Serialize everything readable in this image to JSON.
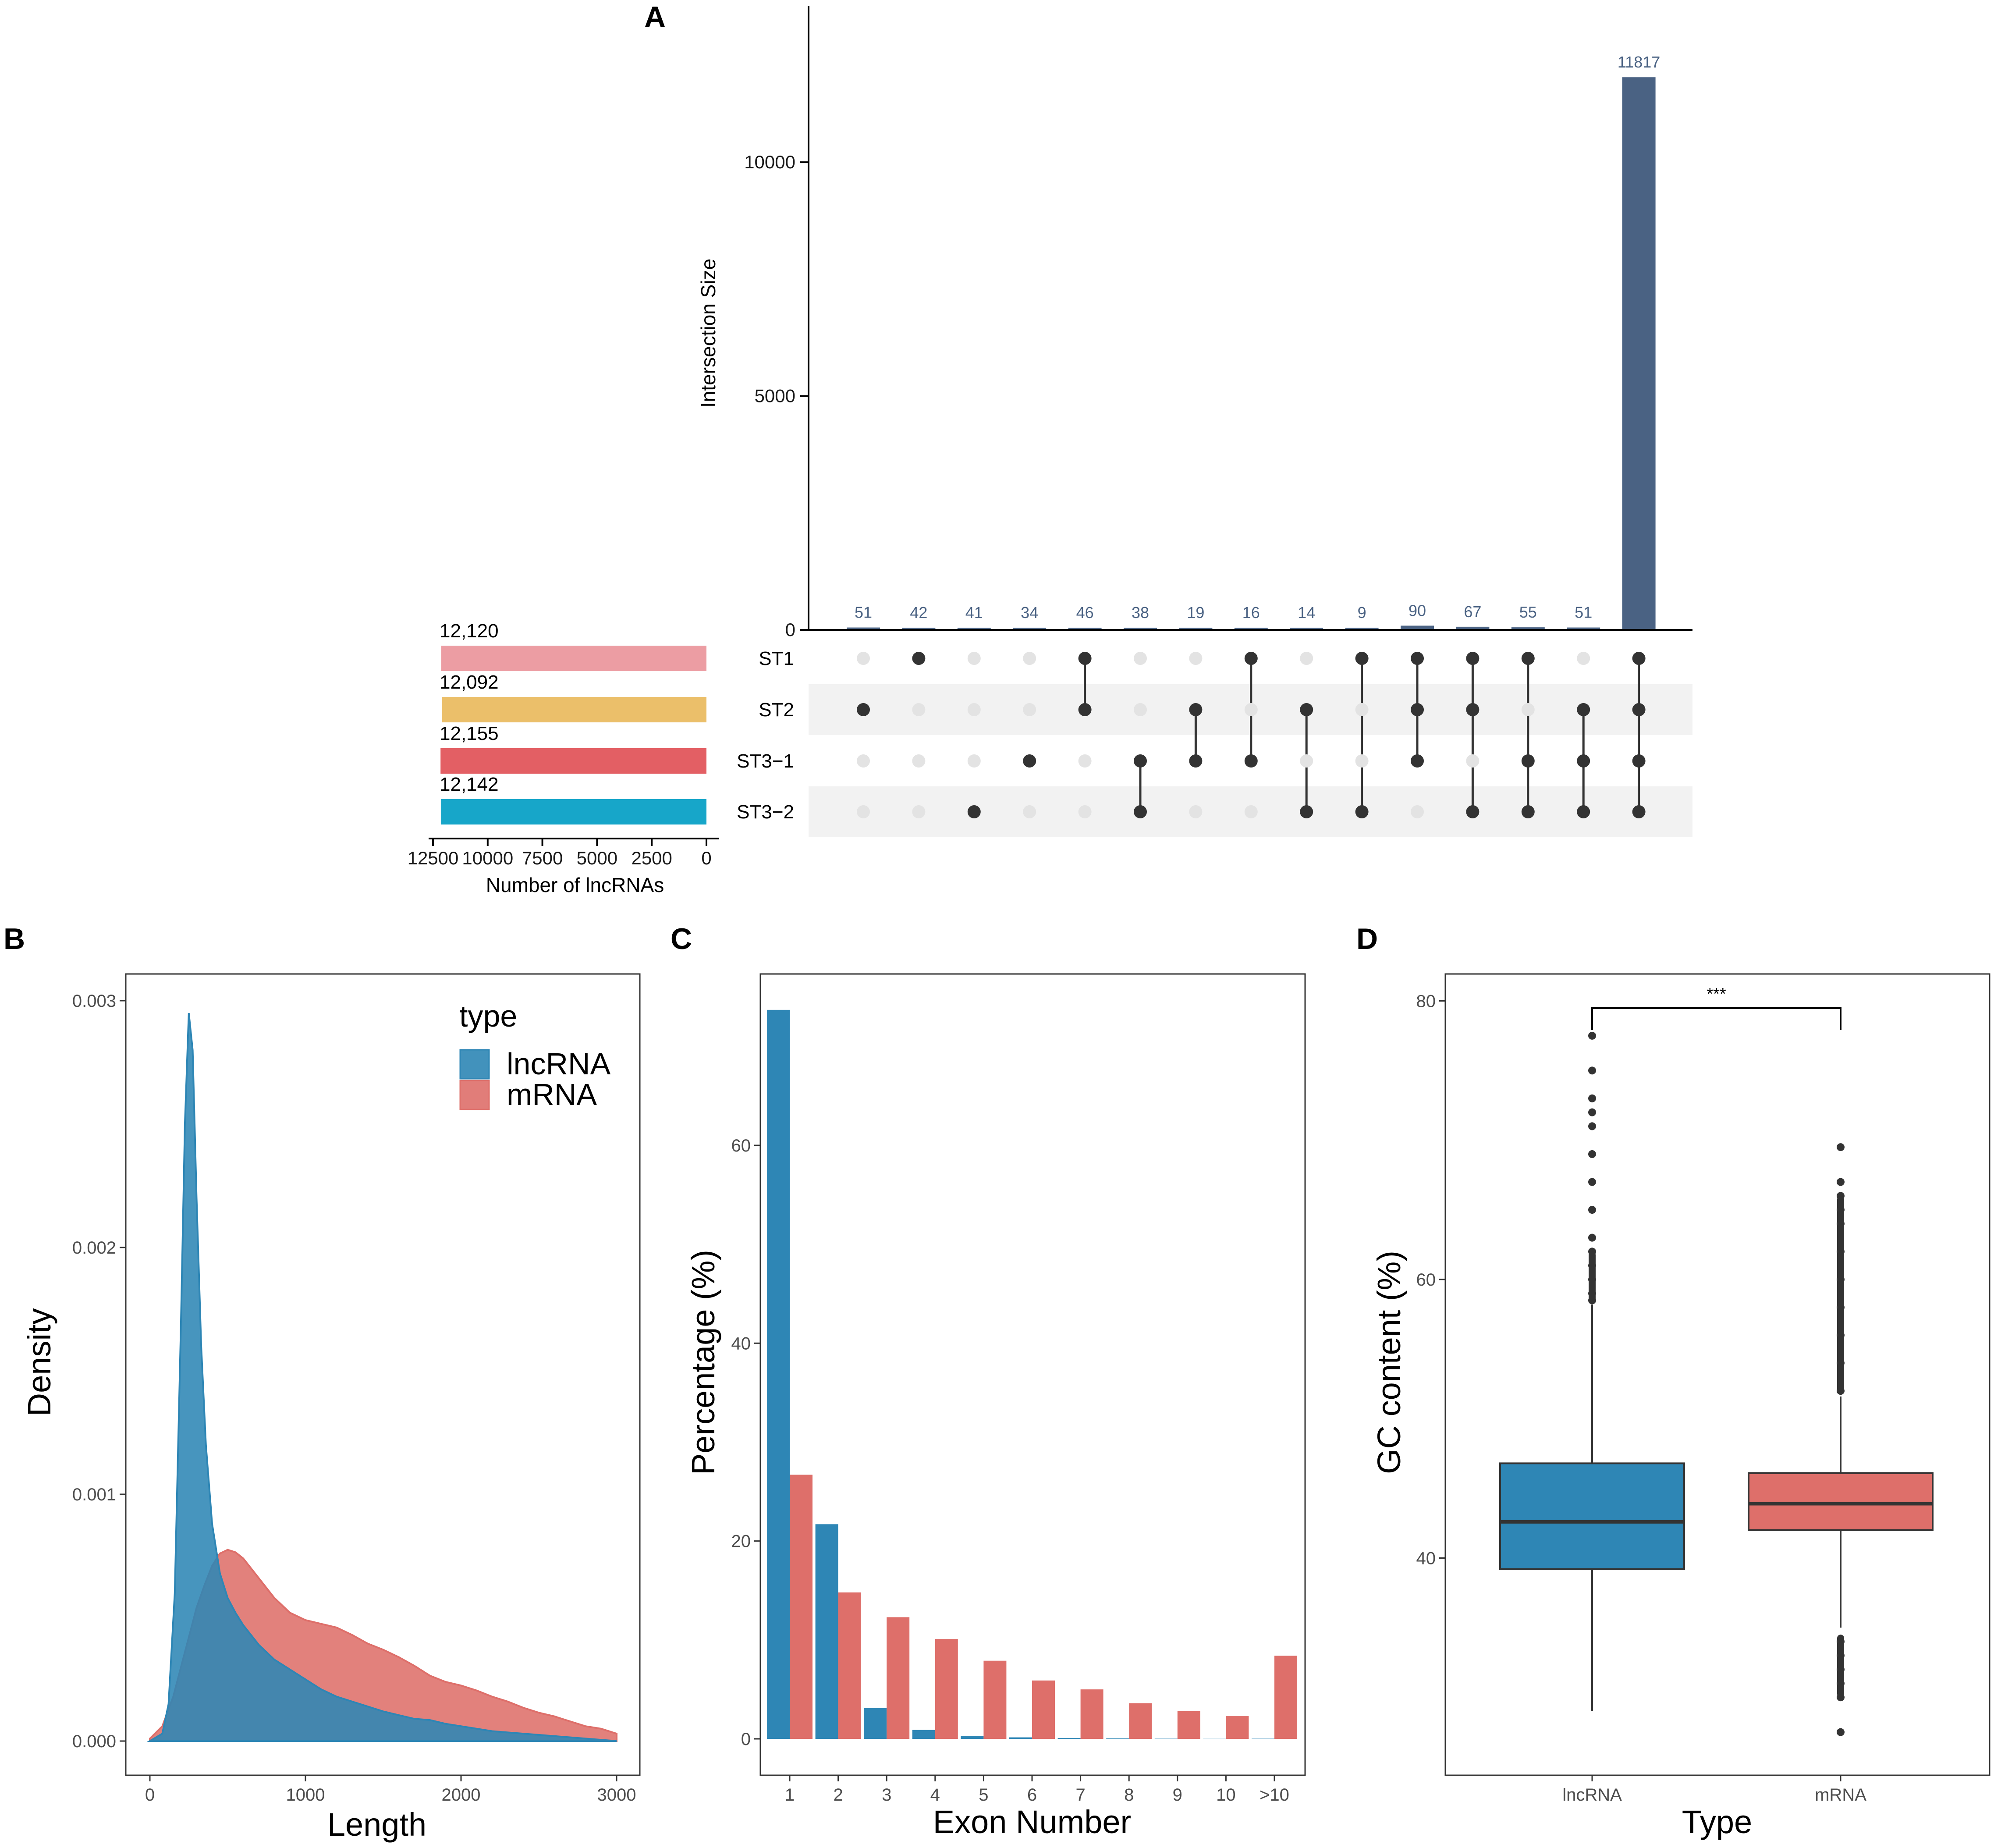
{
  "colors": {
    "upset_bar": "#4a6283",
    "dot_on": "#333333",
    "dot_off": "#e3e3e3",
    "stripe": "#f2f2f2",
    "lncRNA": "#2e86b5",
    "mRNA": "#de6f6a"
  },
  "chart_data": [
    {
      "panel": "A",
      "type": "bar",
      "subtype": "upset",
      "ylabel": "Intersection Size",
      "ylim": [
        0,
        13000
      ],
      "yticks": [
        "0",
        "5000",
        "10000"
      ],
      "yticks_values": [
        0,
        5000,
        10000
      ],
      "values": [
        51,
        42,
        41,
        34,
        46,
        38,
        19,
        16,
        14,
        9,
        90,
        67,
        55,
        51,
        11817
      ],
      "value_labels": [
        "51",
        "42",
        "41",
        "34",
        "46",
        "38",
        "19",
        "16",
        "14",
        "9",
        "90",
        "67",
        "55",
        "51",
        "11817"
      ],
      "sets": [
        "ST1",
        "ST2",
        "ST3−1",
        "ST3−2"
      ],
      "membership": [
        [
          1
        ],
        [
          0
        ],
        [
          3
        ],
        [
          2
        ],
        [
          0,
          1
        ],
        [
          2,
          3
        ],
        [
          1,
          2
        ],
        [
          0,
          2
        ],
        [
          1,
          3
        ],
        [
          0,
          3
        ],
        [
          0,
          1,
          2
        ],
        [
          0,
          1,
          3
        ],
        [
          0,
          2,
          3
        ],
        [
          1,
          2,
          3
        ],
        [
          0,
          1,
          2,
          3
        ]
      ],
      "set_sizes": {
        "values": [
          12120,
          12092,
          12155,
          12142
        ],
        "labels": [
          "12,120",
          "12,092",
          "12,155",
          "12,142"
        ],
        "colors": [
          "#ec9da3",
          "#ebbf6a",
          "#e35f64",
          "#17a6c9"
        ],
        "xlabel": "Number of lncRNAs",
        "xlim": [
          0,
          12500
        ],
        "xticks": [
          "12500",
          "10000",
          "7500",
          "5000",
          "2500",
          "0"
        ],
        "xticks_values": [
          12500,
          10000,
          7500,
          5000,
          2500,
          0
        ]
      }
    },
    {
      "panel": "B",
      "type": "area",
      "xlabel": "Length",
      "ylabel": "Density",
      "xlim": [
        0,
        3000
      ],
      "ylim": [
        0,
        0.003
      ],
      "xticks": [
        "0",
        "1000",
        "2000",
        "3000"
      ],
      "xticks_values": [
        0,
        1000,
        2000,
        3000
      ],
      "yticks": [
        "0.000",
        "0.001",
        "0.002",
        "0.003"
      ],
      "yticks_values": [
        0,
        0.001,
        0.002,
        0.003
      ],
      "legend_title": "type",
      "series": [
        {
          "name": "mRNA",
          "x": [
            0,
            80,
            150,
            200,
            250,
            300,
            350,
            400,
            450,
            500,
            550,
            600,
            700,
            800,
            900,
            1000,
            1100,
            1200,
            1300,
            1400,
            1500,
            1600,
            1700,
            1800,
            1900,
            2000,
            2100,
            2200,
            2300,
            2400,
            2500,
            2600,
            2700,
            2800,
            2900,
            3000
          ],
          "values": [
            1e-05,
            6e-05,
            0.00018,
            0.0003,
            0.00042,
            0.00054,
            0.00063,
            0.00071,
            0.00076,
            0.000775,
            0.000765,
            0.00074,
            0.00066,
            0.00058,
            0.00052,
            0.00049,
            0.000475,
            0.00046,
            0.00043,
            0.000395,
            0.00037,
            0.00034,
            0.000305,
            0.000265,
            0.00024,
            0.000225,
            0.000205,
            0.00018,
            0.00016,
            0.000135,
            0.000115,
            0.0001,
            8e-05,
            6e-05,
            5e-05,
            3e-05
          ]
        },
        {
          "name": "lncRNA",
          "x": [
            0,
            80,
            120,
            160,
            200,
            225,
            250,
            275,
            300,
            330,
            360,
            400,
            450,
            500,
            550,
            600,
            700,
            800,
            900,
            1000,
            1100,
            1200,
            1300,
            1400,
            1500,
            1600,
            1700,
            1800,
            1900,
            2000,
            2200,
            2400,
            2600,
            2800,
            3000
          ],
          "values": [
            0.0,
            3e-05,
            0.00015,
            0.0006,
            0.0017,
            0.0025,
            0.00295,
            0.0028,
            0.0022,
            0.0016,
            0.0012,
            0.00088,
            0.00068,
            0.00058,
            0.00052,
            0.00047,
            0.00039,
            0.00033,
            0.00029,
            0.00025,
            0.00021,
            0.00018,
            0.00016,
            0.00014,
            0.00012,
            0.000105,
            9e-05,
            8.5e-05,
            7e-05,
            6e-05,
            4e-05,
            3e-05,
            2e-05,
            1e-05,
            0.0
          ]
        }
      ],
      "legend": [
        "lncRNA",
        "mRNA"
      ]
    },
    {
      "panel": "C",
      "type": "bar",
      "xlabel": "Exon Number",
      "ylabel": "Percentage (%)",
      "ylim": [
        0,
        78
      ],
      "yticks": [
        "0",
        "20",
        "40",
        "60"
      ],
      "yticks_values": [
        0,
        20,
        40,
        60
      ],
      "categories": [
        "1",
        "2",
        "3",
        "4",
        "5",
        "6",
        "7",
        "8",
        "9",
        "10",
        ">10"
      ],
      "series": [
        {
          "name": "lncRNA",
          "values": [
            73.7,
            21.7,
            3.1,
            0.9,
            0.3,
            0.15,
            0.08,
            0.04,
            0.02,
            0.01,
            0.02
          ]
        },
        {
          "name": "mRNA",
          "values": [
            26.7,
            14.8,
            12.3,
            10.1,
            7.9,
            5.9,
            5.0,
            3.6,
            2.8,
            2.3,
            8.4
          ]
        }
      ]
    },
    {
      "panel": "D",
      "type": "box",
      "xlabel": "Type",
      "ylabel": "GC content (%)",
      "ylim": [
        24.5,
        82.5
      ],
      "yticks": [
        "40",
        "60",
        "80"
      ],
      "yticks_values": [
        40,
        60,
        80
      ],
      "categories": [
        "lncRNA",
        "mRNA"
      ],
      "significance": "***",
      "boxes": [
        {
          "name": "lncRNA",
          "whisker_low": 29,
          "q1": 39.2,
          "median": 42.6,
          "q3": 46.8,
          "whisker_high": 58.2,
          "outliers_high": [
            58.5,
            59,
            60,
            61,
            62,
            63,
            65,
            67,
            69,
            71,
            72,
            73,
            75,
            77.5
          ]
        },
        {
          "name": "mRNA",
          "whisker_low": 35,
          "q1": 42,
          "median": 43.9,
          "q3": 46.1,
          "whisker_high": 51.6,
          "outliers_high": [
            52,
            54,
            56,
            58,
            60,
            62,
            64,
            65,
            66,
            67,
            69.5
          ],
          "outliers_low": [
            34,
            33,
            32,
            31,
            30,
            27.5
          ]
        }
      ]
    }
  ]
}
